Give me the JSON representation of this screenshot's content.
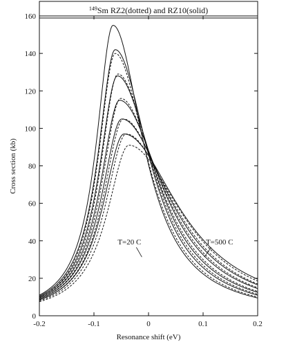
{
  "chart_data": {
    "type": "line",
    "title": {
      "sup": "149",
      "main": "Sm RZ2(dotted) and RZ10(solid)"
    },
    "xlabel": "Resonance shift (eV)",
    "ylabel": "Cross section (kb)",
    "xlim": [
      -0.2,
      0.2
    ],
    "ylim": [
      0,
      160
    ],
    "xticks": [
      -0.2,
      -0.1,
      0,
      0.1,
      0.2
    ],
    "xtick_labels": [
      "-0.2",
      "-0.1",
      "0",
      "0.1",
      "0.2"
    ],
    "yticks": [
      0,
      20,
      40,
      60,
      80,
      100,
      120,
      140,
      160
    ],
    "ytick_labels": [
      "0",
      "20",
      "40",
      "60",
      "80",
      "100",
      "120",
      "140",
      "160"
    ],
    "grid": false,
    "annotations": [
      {
        "text": "T=20 C",
        "x": -0.035,
        "y": 38
      },
      {
        "text": "T=500 C",
        "x": 0.13,
        "y": 38
      }
    ],
    "series": [
      {
        "style": "solid",
        "peak_x": -0.065,
        "peak_y": 155,
        "left_y": 11.0,
        "right_y": 9.5
      },
      {
        "style": "solid",
        "peak_x": -0.061,
        "peak_y": 142,
        "left_y": 10.5,
        "right_y": 11.0
      },
      {
        "style": "solid",
        "peak_x": -0.057,
        "peak_y": 128,
        "left_y": 10.0,
        "right_y": 12.5
      },
      {
        "style": "solid",
        "peak_x": -0.053,
        "peak_y": 115,
        "left_y": 9.5,
        "right_y": 14.5
      },
      {
        "style": "solid",
        "peak_x": -0.049,
        "peak_y": 105,
        "left_y": 9.0,
        "right_y": 16.5
      },
      {
        "style": "solid",
        "peak_x": -0.045,
        "peak_y": 97,
        "left_y": 8.5,
        "right_y": 19.5
      },
      {
        "style": "dotted",
        "peak_x": -0.061,
        "peak_y": 140,
        "left_y": 10.0,
        "right_y": 10.0
      },
      {
        "style": "dotted",
        "peak_x": -0.056,
        "peak_y": 129,
        "left_y": 9.5,
        "right_y": 11.5
      },
      {
        "style": "dotted",
        "peak_x": -0.051,
        "peak_y": 116,
        "left_y": 9.0,
        "right_y": 13.0
      },
      {
        "style": "dotted",
        "peak_x": -0.046,
        "peak_y": 105,
        "left_y": 8.5,
        "right_y": 15.0
      },
      {
        "style": "dotted",
        "peak_x": -0.041,
        "peak_y": 97,
        "left_y": 8.0,
        "right_y": 17.0
      },
      {
        "style": "dotted",
        "peak_x": -0.036,
        "peak_y": 91,
        "left_y": 7.5,
        "right_y": 18.5
      }
    ]
  }
}
